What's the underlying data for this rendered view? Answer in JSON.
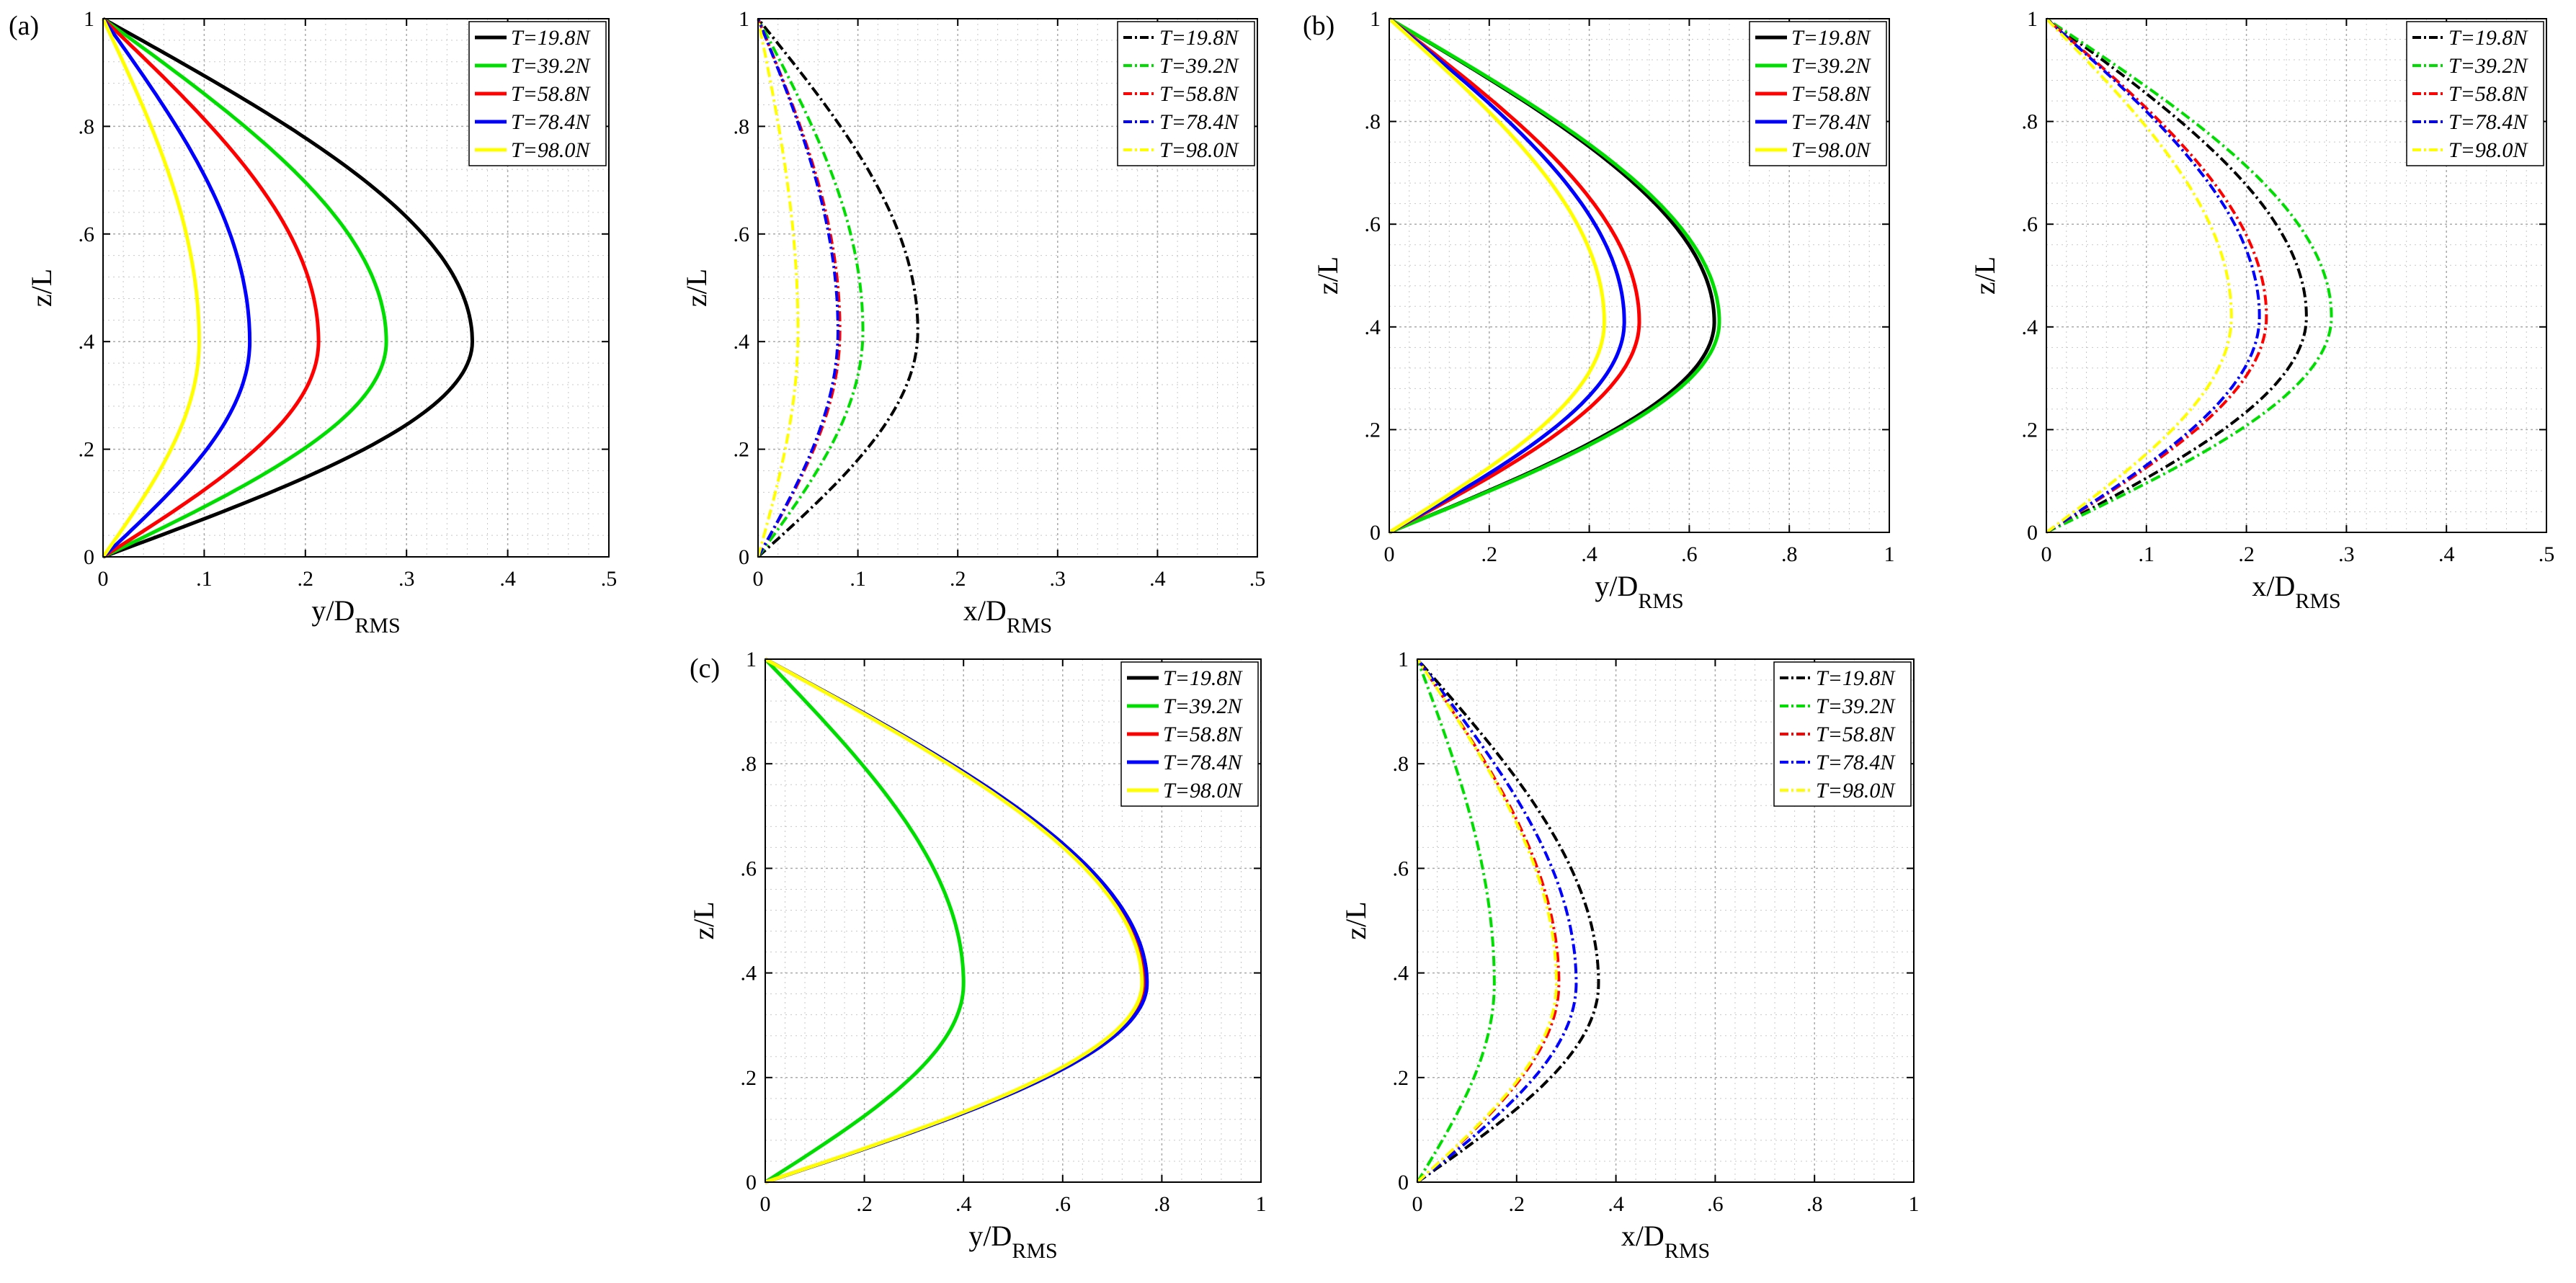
{
  "panel_labels": [
    "(a)",
    "(b)",
    "(c)"
  ],
  "legend": [
    "T=19.8N",
    "T=39.2N",
    "T=58.8N",
    "T=78.4N",
    "T=98.0N"
  ],
  "colors": {
    "T=19.8N": "#000000",
    "T=39.2N": "#00dd00",
    "T=58.8N": "#ff0000",
    "T=78.4N": "#0000ff",
    "T=98.0N": "#ffff00"
  },
  "chart_data": [
    {
      "type": "line",
      "panel": "(a)",
      "line_style": "solid",
      "xlabel": "y/D",
      "xlabel_sub": "RMS",
      "ylabel": "z/L",
      "xlim": [
        0,
        0.5
      ],
      "ylim": [
        0,
        1
      ],
      "xticks": [
        0,
        0.1,
        0.2,
        0.3,
        0.4,
        0.5
      ],
      "peak_z": 0.4,
      "grid": true,
      "legend": "top-right",
      "series": [
        {
          "name": "T=19.8N",
          "peak": 0.365
        },
        {
          "name": "T=39.2N",
          "peak": 0.28
        },
        {
          "name": "T=58.8N",
          "peak": 0.213
        },
        {
          "name": "T=78.4N",
          "peak": 0.145
        },
        {
          "name": "T=98.0N",
          "peak": 0.095
        }
      ]
    },
    {
      "type": "line",
      "panel": "",
      "line_style": "dashdot",
      "xlabel": "x/D",
      "xlabel_sub": "RMS",
      "ylabel": "z/L",
      "xlim": [
        0,
        0.5
      ],
      "ylim": [
        0,
        1
      ],
      "xticks": [
        0,
        0.1,
        0.2,
        0.3,
        0.4,
        0.5
      ],
      "peak_z": 0.42,
      "grid": true,
      "legend": "top-right",
      "series": [
        {
          "name": "T=19.8N",
          "peak": 0.16
        },
        {
          "name": "T=39.2N",
          "peak": 0.105
        },
        {
          "name": "T=58.8N",
          "peak": 0.082
        },
        {
          "name": "T=78.4N",
          "peak": 0.08
        },
        {
          "name": "T=98.0N",
          "peak": 0.04
        }
      ]
    },
    {
      "type": "line",
      "panel": "(b)",
      "line_style": "solid",
      "xlabel": "y/D",
      "xlabel_sub": "RMS",
      "ylabel": "z/L",
      "xlim": [
        0,
        1
      ],
      "ylim": [
        0,
        1
      ],
      "xticks": [
        0,
        0.2,
        0.4,
        0.6,
        0.8,
        1
      ],
      "peak_z": 0.41,
      "grid": true,
      "legend": "top-right",
      "series": [
        {
          "name": "T=19.8N",
          "peak": 0.65
        },
        {
          "name": "T=39.2N",
          "peak": 0.66
        },
        {
          "name": "T=58.8N",
          "peak": 0.5
        },
        {
          "name": "T=78.4N",
          "peak": 0.47
        },
        {
          "name": "T=98.0N",
          "peak": 0.43
        }
      ]
    },
    {
      "type": "line",
      "panel": "",
      "line_style": "dashdot",
      "xlabel": "x/D",
      "xlabel_sub": "RMS",
      "ylabel": "z/L",
      "xlim": [
        0,
        0.5
      ],
      "ylim": [
        0,
        1
      ],
      "xticks": [
        0,
        0.1,
        0.2,
        0.3,
        0.4,
        0.5
      ],
      "peak_z": 0.42,
      "grid": true,
      "legend": "top-right",
      "series": [
        {
          "name": "T=19.8N",
          "peak": 0.26
        },
        {
          "name": "T=39.2N",
          "peak": 0.285
        },
        {
          "name": "T=58.8N",
          "peak": 0.22
        },
        {
          "name": "T=78.4N",
          "peak": 0.213
        },
        {
          "name": "T=98.0N",
          "peak": 0.185
        }
      ]
    },
    {
      "type": "line",
      "panel": "(c)",
      "line_style": "solid",
      "xlabel": "y/D",
      "xlabel_sub": "RMS",
      "ylabel": "z/L",
      "xlim": [
        0,
        1
      ],
      "ylim": [
        0,
        1
      ],
      "xticks": [
        0,
        0.2,
        0.4,
        0.6,
        0.8,
        1
      ],
      "peak_z": 0.38,
      "grid": true,
      "legend": "top-right",
      "series": [
        {
          "name": "T=19.8N",
          "peak": 0.77
        },
        {
          "name": "T=39.2N",
          "peak": 0.4
        },
        {
          "name": "T=58.8N",
          "peak": 0.765
        },
        {
          "name": "T=78.4N",
          "peak": 0.77
        },
        {
          "name": "T=98.0N",
          "peak": 0.76
        }
      ]
    },
    {
      "type": "line",
      "panel": "",
      "line_style": "dashdot",
      "xlabel": "x/D",
      "xlabel_sub": "RMS",
      "ylabel": "z/L",
      "xlim": [
        0,
        1
      ],
      "ylim": [
        0,
        1
      ],
      "xticks": [
        0,
        0.2,
        0.4,
        0.6,
        0.8,
        1
      ],
      "peak_z": 0.38,
      "grid": true,
      "legend": "top-right",
      "series": [
        {
          "name": "T=19.8N",
          "peak": 0.365
        },
        {
          "name": "T=39.2N",
          "peak": 0.155
        },
        {
          "name": "T=58.8N",
          "peak": 0.285
        },
        {
          "name": "T=78.4N",
          "peak": 0.32
        },
        {
          "name": "T=98.0N",
          "peak": 0.28
        }
      ]
    }
  ]
}
